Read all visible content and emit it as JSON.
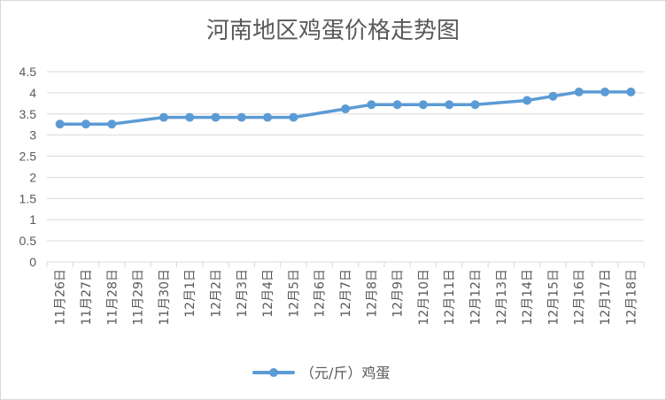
{
  "chart_data": {
    "type": "line",
    "title": "河南地区鸡蛋价格走势图",
    "categories": [
      "11月26日",
      "11月27日",
      "11月28日",
      "11月29日",
      "11月30日",
      "12月1日",
      "12月2日",
      "12月3日",
      "12月4日",
      "12月5日",
      "12月6日",
      "12月7日",
      "12月8日",
      "12月9日",
      "12月10日",
      "12月11日",
      "12月12日",
      "12月13日",
      "12月14日",
      "12月15日",
      "12月16日",
      "12月17日",
      "12月18日"
    ],
    "series": [
      {
        "name": "（元/斤）鸡蛋",
        "color": "#5b9bd5",
        "values": [
          3.26,
          3.26,
          3.26,
          null,
          3.42,
          3.42,
          3.42,
          3.42,
          3.42,
          3.42,
          null,
          3.62,
          3.72,
          3.72,
          3.72,
          3.72,
          3.72,
          null,
          3.82,
          3.92,
          4.02,
          4.02,
          4.02
        ]
      }
    ],
    "ylim": [
      0,
      4.5
    ],
    "yticks": [
      "0",
      "0.5",
      "1",
      "1.5",
      "2",
      "2.5",
      "3",
      "3.5",
      "4",
      "4.5"
    ],
    "grid": true,
    "legend": "bottom"
  }
}
